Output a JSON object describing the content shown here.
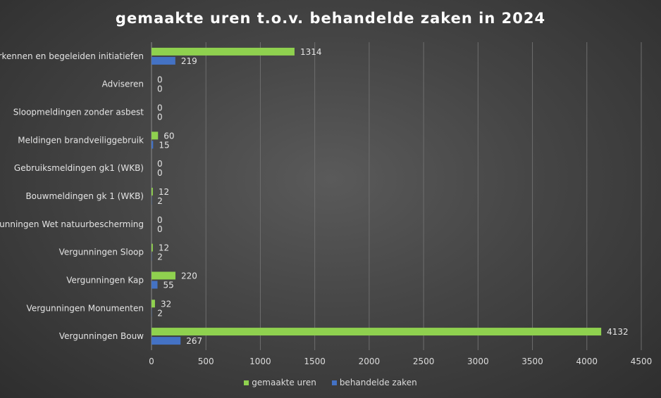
{
  "chart_data": {
    "type": "bar",
    "orientation": "horizontal",
    "title": "gemaakte uren t.o.v. behandelde zaken in 2024",
    "categories": [
      "Verkennen en begeleiden initiatiefen",
      "Adviseren",
      "Sloopmeldingen zonder asbest",
      "Meldingen brandveiliggebruik",
      "Gebruiksmeldingen gk1 (WKB)",
      "Bouwmeldingen gk 1 (WKB)",
      "Vergunningen Wet natuurbescherming",
      "Vergunningen Sloop",
      "Vergunningen Kap",
      "Vergunningen Monumenten",
      "Vergunningen Bouw"
    ],
    "series": [
      {
        "name": "gemaakte uren",
        "color": "#8fd14f",
        "values": [
          1314,
          0,
          0,
          60,
          0,
          12,
          0,
          12,
          220,
          32,
          4132
        ]
      },
      {
        "name": "behandelde zaken",
        "color": "#4472c4",
        "values": [
          219,
          0,
          0,
          15,
          0,
          2,
          0,
          2,
          55,
          2,
          267
        ]
      }
    ],
    "xlim": [
      0,
      4500
    ],
    "xticks": [
      0,
      500,
      1000,
      1500,
      2000,
      2500,
      3000,
      3500,
      4000,
      4500
    ],
    "grid": true,
    "legend_position": "bottom",
    "data_labels": true
  }
}
